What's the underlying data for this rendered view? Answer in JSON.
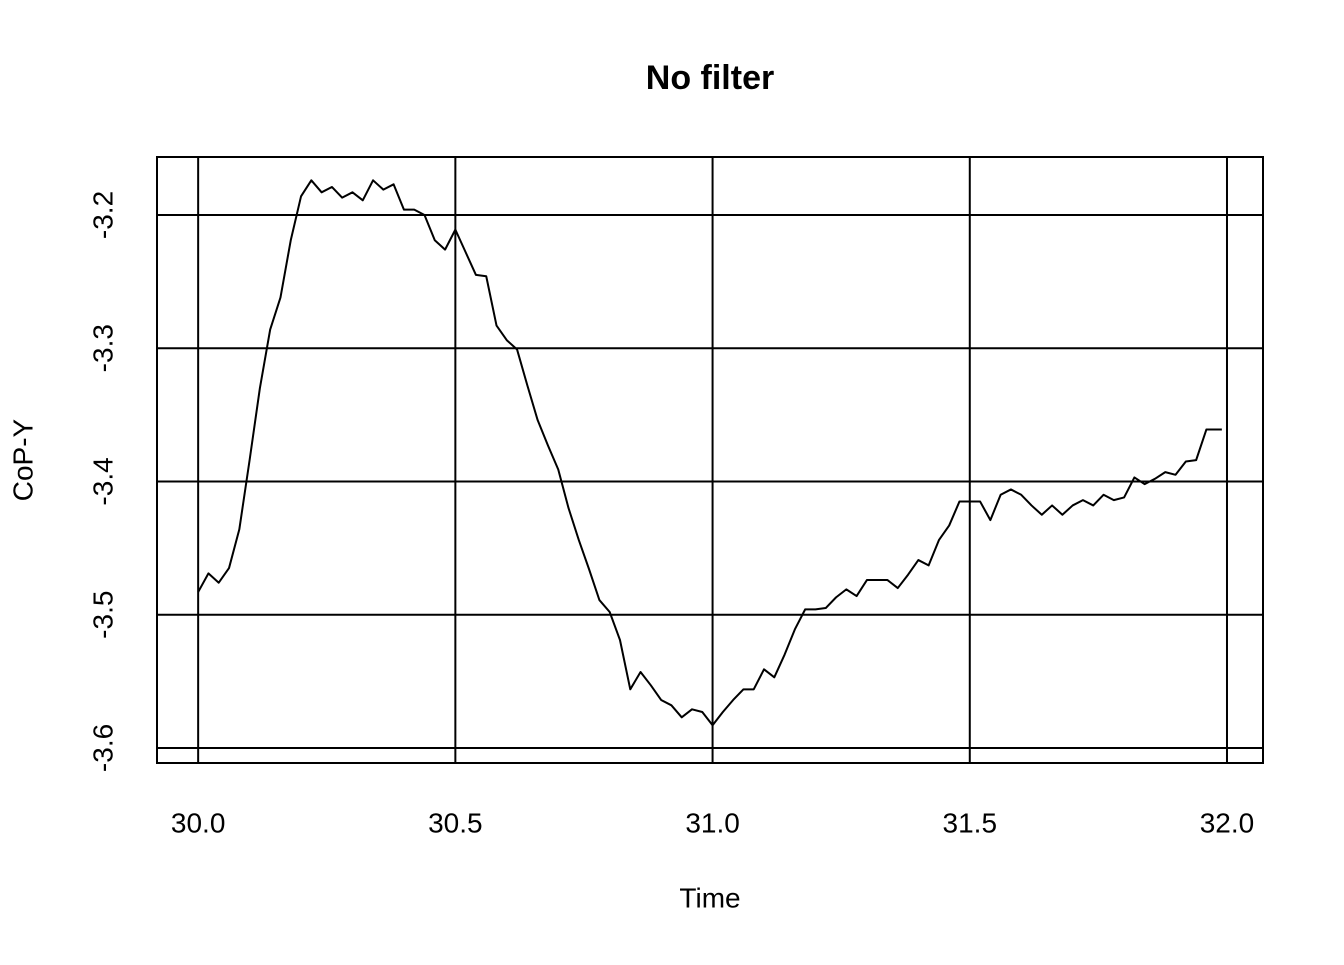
{
  "chart_data": {
    "type": "line",
    "title": "No filter",
    "x_label": "Time",
    "y_label": "CoP-Y",
    "x": [
      30.0,
      30.02,
      30.04,
      30.06,
      30.08,
      30.1,
      30.12,
      30.14,
      30.16,
      30.18,
      30.2,
      30.22,
      30.24,
      30.26,
      30.28,
      30.3,
      30.32,
      30.34,
      30.36,
      30.38,
      30.4,
      30.42,
      30.44,
      30.46,
      30.48,
      30.5,
      30.52,
      30.54,
      30.56,
      30.58,
      30.6,
      30.62,
      30.64,
      30.66,
      30.68,
      30.7,
      30.72,
      30.74,
      30.76,
      30.78,
      30.8,
      30.82,
      30.84,
      30.86,
      30.88,
      30.9,
      30.92,
      30.94,
      30.96,
      30.98,
      31.0,
      31.02,
      31.04,
      31.06,
      31.08,
      31.1,
      31.12,
      31.14,
      31.16,
      31.18,
      31.2,
      31.22,
      31.24,
      31.26,
      31.28,
      31.3,
      31.32,
      31.34,
      31.36,
      31.38,
      31.4,
      31.42,
      31.44,
      31.46,
      31.48,
      31.5,
      31.52,
      31.54,
      31.56,
      31.58,
      31.6,
      31.62,
      31.64,
      31.66,
      31.68,
      31.7,
      31.72,
      31.74,
      31.76,
      31.78,
      31.8,
      31.82,
      31.84,
      31.86,
      31.88,
      31.9,
      31.92,
      31.94,
      31.96,
      31.99
    ],
    "series": [
      {
        "name": "CoP-Y",
        "color": "#000000",
        "values": [
          -3.483,
          -3.469,
          -3.476,
          -3.465,
          -3.436,
          -3.384,
          -3.33,
          -3.286,
          -3.262,
          -3.219,
          -3.186,
          -3.174,
          -3.183,
          -3.179,
          -3.187,
          -3.183,
          -3.189,
          -3.174,
          -3.181,
          -3.177,
          -3.196,
          -3.196,
          -3.2,
          -3.219,
          -3.226,
          -3.211,
          -3.228,
          -3.245,
          -3.246,
          -3.283,
          -3.294,
          -3.301,
          -3.328,
          -3.354,
          -3.373,
          -3.391,
          -3.42,
          -3.444,
          -3.466,
          -3.489,
          -3.498,
          -3.519,
          -3.556,
          -3.543,
          -3.553,
          -3.564,
          -3.568,
          -3.577,
          -3.571,
          -3.573,
          -3.583,
          -3.573,
          -3.564,
          -3.556,
          -3.556,
          -3.541,
          -3.547,
          -3.53,
          -3.511,
          -3.496,
          -3.496,
          -3.495,
          -3.487,
          -3.481,
          -3.486,
          -3.474,
          -3.474,
          -3.474,
          -3.48,
          -3.47,
          -3.459,
          -3.463,
          -3.444,
          -3.433,
          -3.415,
          -3.415,
          -3.415,
          -3.429,
          -3.41,
          -3.406,
          -3.41,
          -3.418,
          -3.425,
          -3.418,
          -3.425,
          -3.418,
          -3.414,
          -3.418,
          -3.41,
          -3.414,
          -3.412,
          -3.397,
          -3.402,
          -3.398,
          -3.393,
          -3.395,
          -3.385,
          -3.384,
          -3.361,
          -3.361
        ]
      }
    ],
    "xlim": [
      29.92,
      32.07
    ],
    "ylim": [
      -3.6113,
      -3.1565
    ],
    "xticks": [
      {
        "value": 30,
        "label": "30.0"
      },
      {
        "value": 30.5,
        "label": "30.5"
      },
      {
        "value": 31,
        "label": "31.0"
      },
      {
        "value": 31.5,
        "label": "31.5"
      },
      {
        "value": 32,
        "label": "32.0"
      }
    ],
    "yticks": [
      -3.6,
      -3.5,
      -3.4,
      -3.3,
      -3.2
    ],
    "grid": true
  }
}
